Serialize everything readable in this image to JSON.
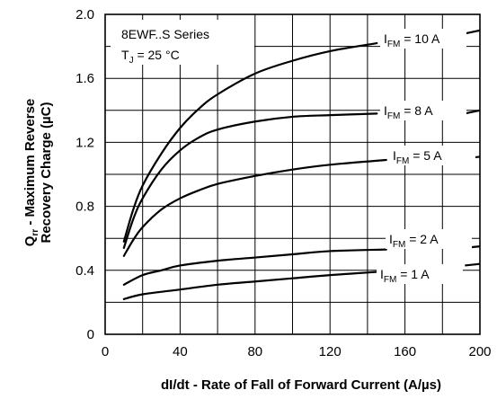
{
  "chart_data": {
    "type": "line",
    "title": "",
    "annotation": {
      "series": "8EWF..S Series",
      "tj_prefix": "T",
      "tj_sub": "J",
      "tj_value": " = 25 °C"
    },
    "xlabel": "dI/dt - Rate of Fall of Forward Current (A/µs)",
    "ylabel": {
      "q": "Q",
      "q_sub": "rr",
      "line1_rest": " - Maximum Reverse",
      "line2": "Recovery Charge (µC)"
    },
    "xlim": [
      0,
      200
    ],
    "ylim": [
      0,
      2.0
    ],
    "xticks": [
      "0",
      "40",
      "80",
      "120",
      "160",
      "200"
    ],
    "yticks": [
      "0",
      "0.4",
      "0.8",
      "1.2",
      "1.6",
      "2.0"
    ],
    "grid": true,
    "series": [
      {
        "name_prefix": "I",
        "name_sub": "FM",
        "name_value": " = 10 A",
        "x": [
          10,
          15,
          20,
          30,
          40,
          50,
          60,
          80,
          100,
          120,
          145
        ],
        "y": [
          0.58,
          0.78,
          0.93,
          1.13,
          1.29,
          1.41,
          1.5,
          1.63,
          1.71,
          1.77,
          1.82
        ]
      },
      {
        "name_prefix": "I",
        "name_sub": "FM",
        "name_value": " = 8 A",
        "x": [
          10,
          15,
          20,
          30,
          40,
          50,
          60,
          80,
          100,
          120,
          145
        ],
        "y": [
          0.54,
          0.72,
          0.85,
          1.03,
          1.15,
          1.23,
          1.28,
          1.33,
          1.36,
          1.37,
          1.38
        ]
      },
      {
        "name_prefix": "I",
        "name_sub": "FM",
        "name_value": " = 5 A",
        "x": [
          10,
          15,
          20,
          30,
          40,
          50,
          60,
          80,
          100,
          120,
          150
        ],
        "y": [
          0.49,
          0.59,
          0.67,
          0.78,
          0.85,
          0.9,
          0.94,
          0.99,
          1.03,
          1.06,
          1.09
        ]
      },
      {
        "name_prefix": "I",
        "name_sub": "FM",
        "name_value": " = 2 A",
        "x": [
          10,
          20,
          30,
          40,
          60,
          80,
          100,
          120,
          150
        ],
        "y": [
          0.31,
          0.37,
          0.4,
          0.43,
          0.46,
          0.48,
          0.5,
          0.52,
          0.53
        ]
      },
      {
        "name_prefix": "I",
        "name_sub": "FM",
        "name_value": " = 1 A",
        "x": [
          10,
          20,
          40,
          60,
          80,
          100,
          120,
          145
        ],
        "y": [
          0.22,
          0.25,
          0.28,
          0.31,
          0.33,
          0.35,
          0.37,
          0.39
        ]
      }
    ]
  }
}
